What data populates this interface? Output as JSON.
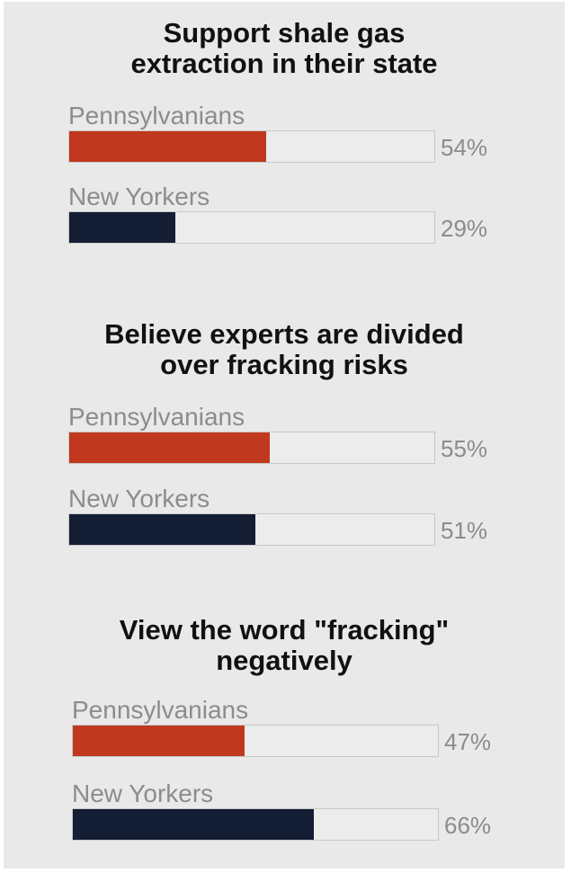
{
  "chart_data": [
    {
      "type": "bar",
      "orientation": "horizontal",
      "title": "Support shale gas extraction in their state",
      "title_lines": [
        "Support shale gas",
        "extraction in their state"
      ],
      "categories": [
        "Pennsylvanians",
        "New Yorkers"
      ],
      "values": [
        54,
        29
      ],
      "value_labels": [
        "54%",
        "29%"
      ],
      "xlim": [
        0,
        100
      ],
      "grid": false,
      "legend": "none"
    },
    {
      "type": "bar",
      "orientation": "horizontal",
      "title": "Believe experts are divided over fracking risks",
      "title_lines": [
        "Believe experts are divided",
        "over fracking risks"
      ],
      "categories": [
        "Pennsylvanians",
        "New Yorkers"
      ],
      "values": [
        55,
        51
      ],
      "value_labels": [
        "55%",
        "51%"
      ],
      "xlim": [
        0,
        100
      ],
      "grid": false,
      "legend": "none"
    },
    {
      "type": "bar",
      "orientation": "horizontal",
      "title": "View the word \"fracking\" negatively",
      "title_lines": [
        "View the word \"fracking\"",
        "negatively"
      ],
      "categories": [
        "Pennsylvanians",
        "New Yorkers"
      ],
      "values": [
        47,
        66
      ],
      "value_labels": [
        "47%",
        "66%"
      ],
      "xlim": [
        0,
        100
      ],
      "grid": false,
      "legend": "none"
    }
  ],
  "colors": {
    "Pennsylvanians": "#c0391f",
    "New Yorkers": "#131d33"
  }
}
